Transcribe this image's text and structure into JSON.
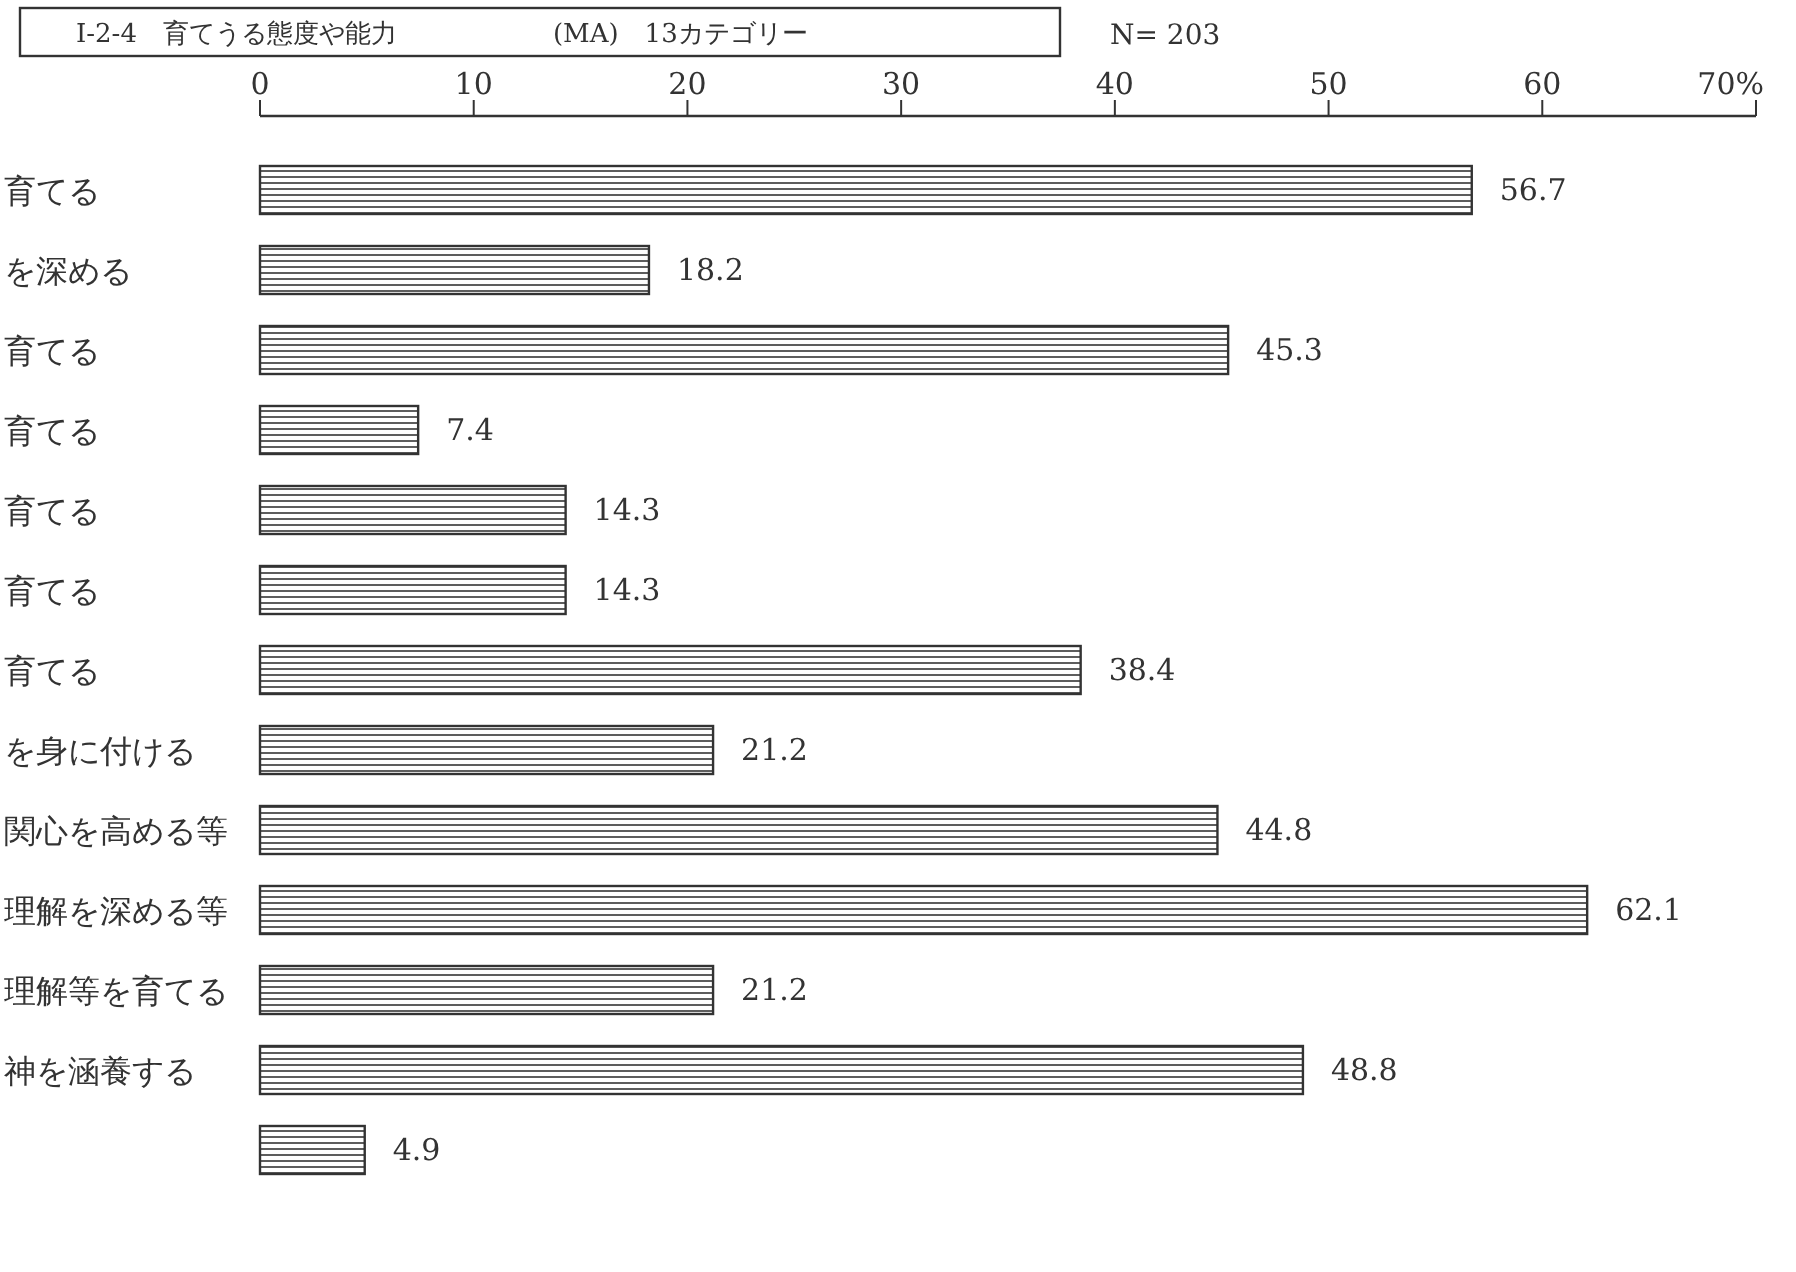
{
  "chart_data": {
    "type": "bar",
    "orientation": "horizontal",
    "title": "Ⅰ-2-4　育てうる態度や能力　　　　　　(MA)　13カテゴリー",
    "annotations": [
      "N= 203"
    ],
    "categories": [
      "育てる",
      "を深める",
      "育てる",
      "育てる",
      "育てる",
      "育てる",
      "育てる",
      "を身に付ける",
      "関心を高める等",
      "理解を深める等",
      "理解等を育てる",
      "神を涵養する",
      null
    ],
    "values": [
      56.7,
      18.2,
      45.3,
      7.4,
      14.3,
      14.3,
      38.4,
      21.2,
      44.8,
      62.1,
      21.2,
      48.8,
      4.9
    ],
    "color": "#333333",
    "data_labels": true,
    "xlim": [
      0,
      70
    ],
    "xticks": [
      0,
      10,
      20,
      30,
      40,
      50,
      60,
      {
        "value": 70,
        "label": "70%"
      }
    ],
    "grid": false
  }
}
